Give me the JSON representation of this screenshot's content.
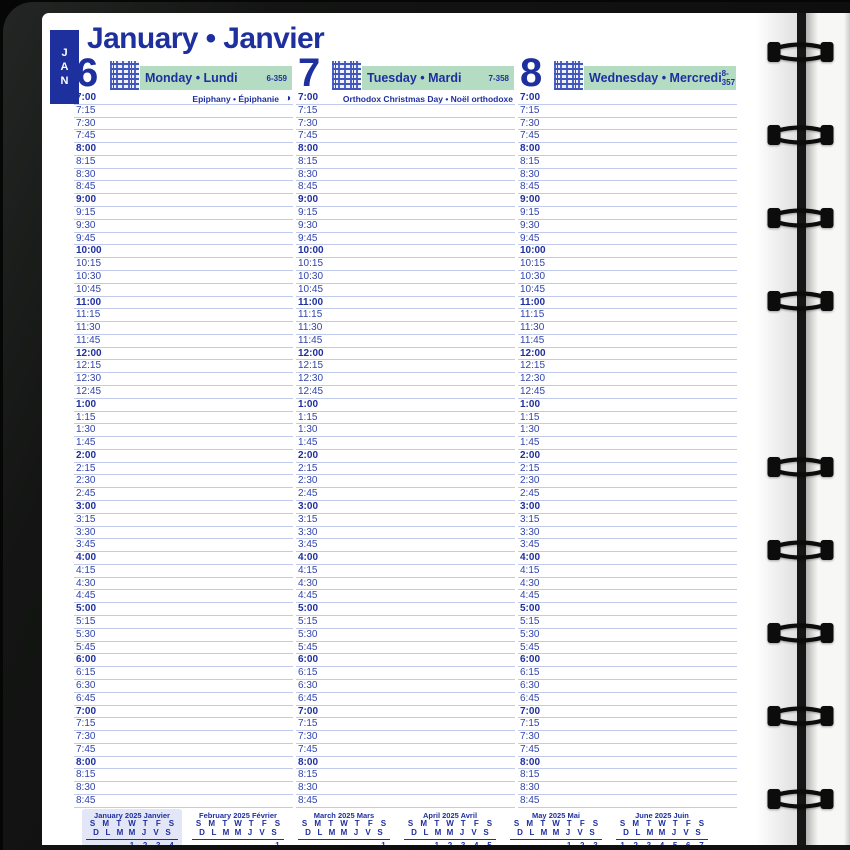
{
  "page": {
    "title": "January • Janvier",
    "tab_letters": [
      "J",
      "A",
      "N"
    ]
  },
  "days": [
    {
      "number": "6",
      "name": "Monday • Lundi",
      "code": "6-359",
      "holiday": "Epiphany • Épiphanie",
      "moon": "◑"
    },
    {
      "number": "7",
      "name": "Tuesday • Mardi",
      "code": "7-358",
      "holiday": "Orthodox Christmas Day • Noël orthodoxe",
      "moon": ""
    },
    {
      "number": "8",
      "name": "Wednesday • Mercredi",
      "code": "8-357",
      "holiday": "",
      "moon": ""
    }
  ],
  "schedule": {
    "times": [
      "7:00",
      "7:15",
      "7:30",
      "7:45",
      "8:00",
      "8:15",
      "8:30",
      "8:45",
      "9:00",
      "9:15",
      "9:30",
      "9:45",
      "10:00",
      "10:15",
      "10:30",
      "10:45",
      "11:00",
      "11:15",
      "11:30",
      "11:45",
      "12:00",
      "12:15",
      "12:30",
      "12:45",
      "1:00",
      "1:15",
      "1:30",
      "1:45",
      "2:00",
      "2:15",
      "2:30",
      "2:45",
      "3:00",
      "3:15",
      "3:30",
      "3:45",
      "4:00",
      "4:15",
      "4:30",
      "4:45",
      "5:00",
      "5:15",
      "5:30",
      "5:45",
      "6:00",
      "6:15",
      "6:30",
      "6:45",
      "7:00",
      "7:15",
      "7:30",
      "7:45",
      "8:00",
      "8:15",
      "8:30",
      "8:45"
    ]
  },
  "mini_calendars": {
    "day_headers_en": [
      "S",
      "M",
      "T",
      "W",
      "T",
      "F",
      "S"
    ],
    "day_headers_fr": [
      "D",
      "L",
      "M",
      "M",
      "J",
      "V",
      "S"
    ],
    "months": [
      {
        "title": "January 2025 Janvier",
        "highlighted": true,
        "week1": [
          "",
          "",
          "",
          "1",
          "2",
          "3",
          "4"
        ]
      },
      {
        "title": "February 2025 Février",
        "highlighted": false,
        "week1": [
          "",
          "",
          "",
          "",
          "",
          "",
          "1"
        ]
      },
      {
        "title": "March 2025 Mars",
        "highlighted": false,
        "week1": [
          "",
          "",
          "",
          "",
          "",
          "",
          "1"
        ]
      },
      {
        "title": "April 2025 Avril",
        "highlighted": false,
        "week1": [
          "",
          "",
          "1",
          "2",
          "3",
          "4",
          "5"
        ]
      },
      {
        "title": "May 2025 Mai",
        "highlighted": false,
        "week1": [
          "",
          "",
          "",
          "",
          "1",
          "2",
          "3"
        ]
      },
      {
        "title": "June 2025 Juin",
        "highlighted": false,
        "week1": [
          "1",
          "2",
          "3",
          "4",
          "5",
          "6",
          "7"
        ]
      }
    ]
  },
  "colors": {
    "accent": "#1e2f9e",
    "time_text": "#3145ac",
    "grid_line": "#c1c9ec",
    "green_bar": "#b4dcc2",
    "month_highlight": "#e2e6f6",
    "paper": "#ffffff"
  }
}
